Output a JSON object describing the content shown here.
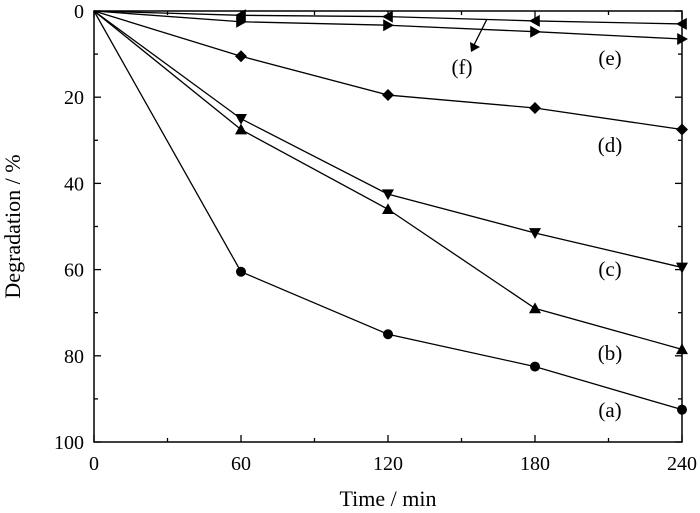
{
  "chart_data": {
    "type": "line",
    "title": "",
    "xlabel": "Time / min",
    "ylabel": "Degradation / %",
    "xlim": [
      0,
      240
    ],
    "ylim": [
      0,
      100
    ],
    "y_inverted": true,
    "xticks": [
      0,
      60,
      120,
      180,
      240
    ],
    "yticks": [
      0,
      20,
      40,
      60,
      80,
      100
    ],
    "x_minor_step": 30,
    "y_minor_step": 10,
    "grid": false,
    "legend": "none",
    "series": [
      {
        "label": "(a)",
        "marker": "circle",
        "x": [
          0,
          60,
          120,
          180,
          240
        ],
        "y": [
          0,
          60.5,
          75,
          82.5,
          92.5
        ]
      },
      {
        "label": "(b)",
        "marker": "triangle-up",
        "x": [
          0,
          60,
          120,
          180,
          240
        ],
        "y": [
          0,
          27.5,
          46,
          69,
          78.5
        ]
      },
      {
        "label": "(c)",
        "marker": "triangle-down",
        "x": [
          0,
          60,
          120,
          180,
          240
        ],
        "y": [
          0,
          25,
          42.5,
          51.5,
          59.5
        ]
      },
      {
        "label": "(d)",
        "marker": "diamond",
        "x": [
          0,
          60,
          120,
          180,
          240
        ],
        "y": [
          0,
          10.5,
          19.5,
          22.5,
          27.5
        ]
      },
      {
        "label": "(e)",
        "marker": "triangle-left",
        "x": [
          0,
          60,
          120,
          180,
          240
        ],
        "y": [
          0,
          1,
          1.3,
          2.3,
          3
        ]
      },
      {
        "label": "(f)",
        "marker": "triangle-right",
        "x": [
          0,
          60,
          120,
          180,
          240
        ],
        "y": [
          0,
          2.5,
          3.3,
          4.8,
          6.5
        ]
      }
    ]
  }
}
